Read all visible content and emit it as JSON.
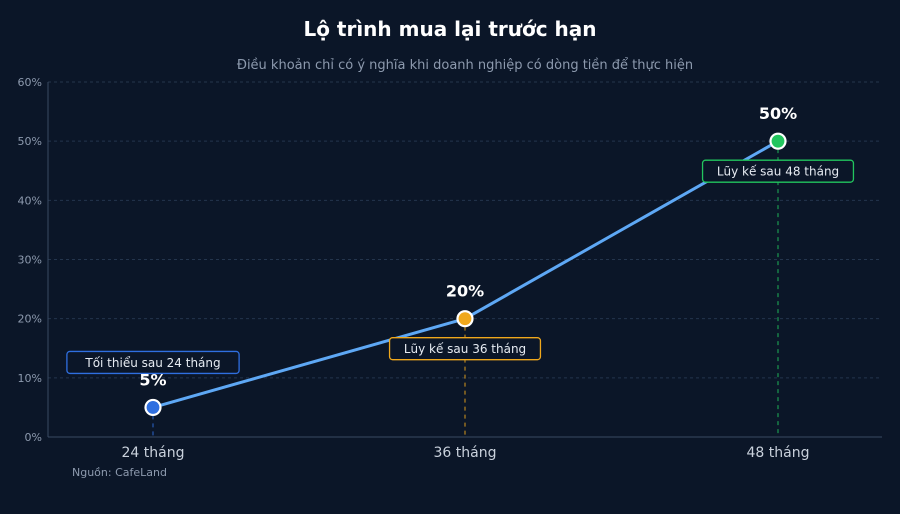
{
  "chart_data": {
    "type": "line",
    "title": "Lộ trình mua lại trước hạn",
    "subtitle": "Điều khoản chỉ có ý nghĩa khi doanh nghiệp có dòng tiền để thực hiện",
    "categories": [
      "24 tháng",
      "36 tháng",
      "48 tháng"
    ],
    "series": [
      {
        "values": [
          5,
          20,
          50
        ],
        "color": "#5ea8f5"
      }
    ],
    "data_labels": [
      "5%",
      "20%",
      "50%"
    ],
    "point_colors": [
      "#2f6fe0",
      "#f0a81c",
      "#22c55e"
    ],
    "annotations": [
      {
        "text": "Tối thiểu sau 24 tháng",
        "color": "#2f6fe0",
        "position": "above"
      },
      {
        "text": "Lũy kế sau 36 tháng",
        "color": "#f0a81c",
        "position": "below"
      },
      {
        "text": "Lũy kế sau 48 tháng",
        "color": "#22c55e",
        "position": "below"
      }
    ],
    "ylim": [
      0,
      60
    ],
    "yticks": [
      0,
      10,
      20,
      30,
      40,
      50,
      60
    ],
    "ytick_labels": [
      "0%",
      "10%",
      "20%",
      "30%",
      "40%",
      "50%",
      "60%"
    ],
    "grid": true,
    "source": "Nguồn: CafeLand"
  }
}
